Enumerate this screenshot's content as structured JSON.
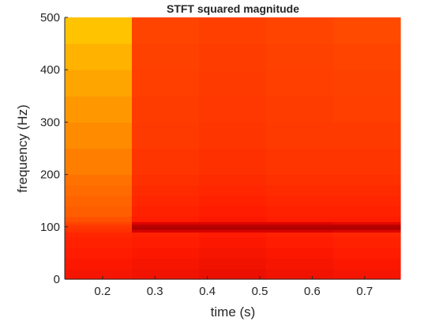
{
  "chart_data": {
    "type": "heatmap",
    "title": "STFT squared magnitude",
    "xlabel": "time (s)",
    "ylabel": "frequency (Hz)",
    "xlim": [
      0.128,
      0.768
    ],
    "ylim": [
      0,
      500
    ],
    "x_ticks": [
      0.2,
      0.3,
      0.4,
      0.5,
      0.6,
      0.7
    ],
    "x_tick_labels": [
      "0.2",
      "0.3",
      "0.4",
      "0.5",
      "0.6",
      "0.7"
    ],
    "y_ticks": [
      0,
      100,
      200,
      300,
      400,
      500
    ],
    "y_tick_labels": [
      "0",
      "100",
      "200",
      "300",
      "400",
      "500"
    ],
    "time_bins": [
      {
        "t_start": 0.128,
        "t_end": 0.256
      },
      {
        "t_start": 0.256,
        "t_end": 0.384
      },
      {
        "t_start": 0.384,
        "t_end": 0.512
      },
      {
        "t_start": 0.512,
        "t_end": 0.64
      },
      {
        "t_start": 0.64,
        "t_end": 0.768
      }
    ],
    "frequency_bands_hz": [
      0,
      20,
      40,
      60,
      80,
      90,
      95,
      100,
      105,
      110,
      120,
      140,
      160,
      180,
      200,
      250,
      300,
      350,
      400,
      450,
      500
    ],
    "values": [
      [
        0.3,
        0.32,
        0.34,
        0.36,
        0.38,
        0.42,
        0.44,
        0.46,
        0.5,
        0.54,
        0.58,
        0.6,
        0.62,
        0.64,
        0.68,
        0.72,
        0.76,
        0.8,
        0.84,
        0.9
      ],
      [
        0.28,
        0.3,
        0.32,
        0.34,
        0.36,
        0.18,
        0.1,
        0.12,
        0.2,
        0.34,
        0.36,
        0.38,
        0.4,
        0.42,
        0.44,
        0.46,
        0.47,
        0.48,
        0.49,
        0.5
      ],
      [
        0.26,
        0.28,
        0.3,
        0.32,
        0.34,
        0.18,
        0.1,
        0.12,
        0.2,
        0.32,
        0.34,
        0.36,
        0.38,
        0.4,
        0.42,
        0.44,
        0.45,
        0.46,
        0.47,
        0.48
      ],
      [
        0.28,
        0.3,
        0.32,
        0.34,
        0.36,
        0.18,
        0.1,
        0.12,
        0.2,
        0.34,
        0.36,
        0.38,
        0.4,
        0.42,
        0.44,
        0.46,
        0.47,
        0.48,
        0.49,
        0.5
      ],
      [
        0.3,
        0.32,
        0.34,
        0.36,
        0.38,
        0.2,
        0.1,
        0.12,
        0.22,
        0.34,
        0.36,
        0.38,
        0.4,
        0.42,
        0.44,
        0.46,
        0.48,
        0.49,
        0.5,
        0.52
      ]
    ],
    "colormap": [
      "#7a0000",
      "#d40000",
      "#ff1a00",
      "#ff4400",
      "#ff7a00",
      "#ffb000",
      "#ffe000"
    ],
    "grid": false,
    "legend": "none"
  }
}
